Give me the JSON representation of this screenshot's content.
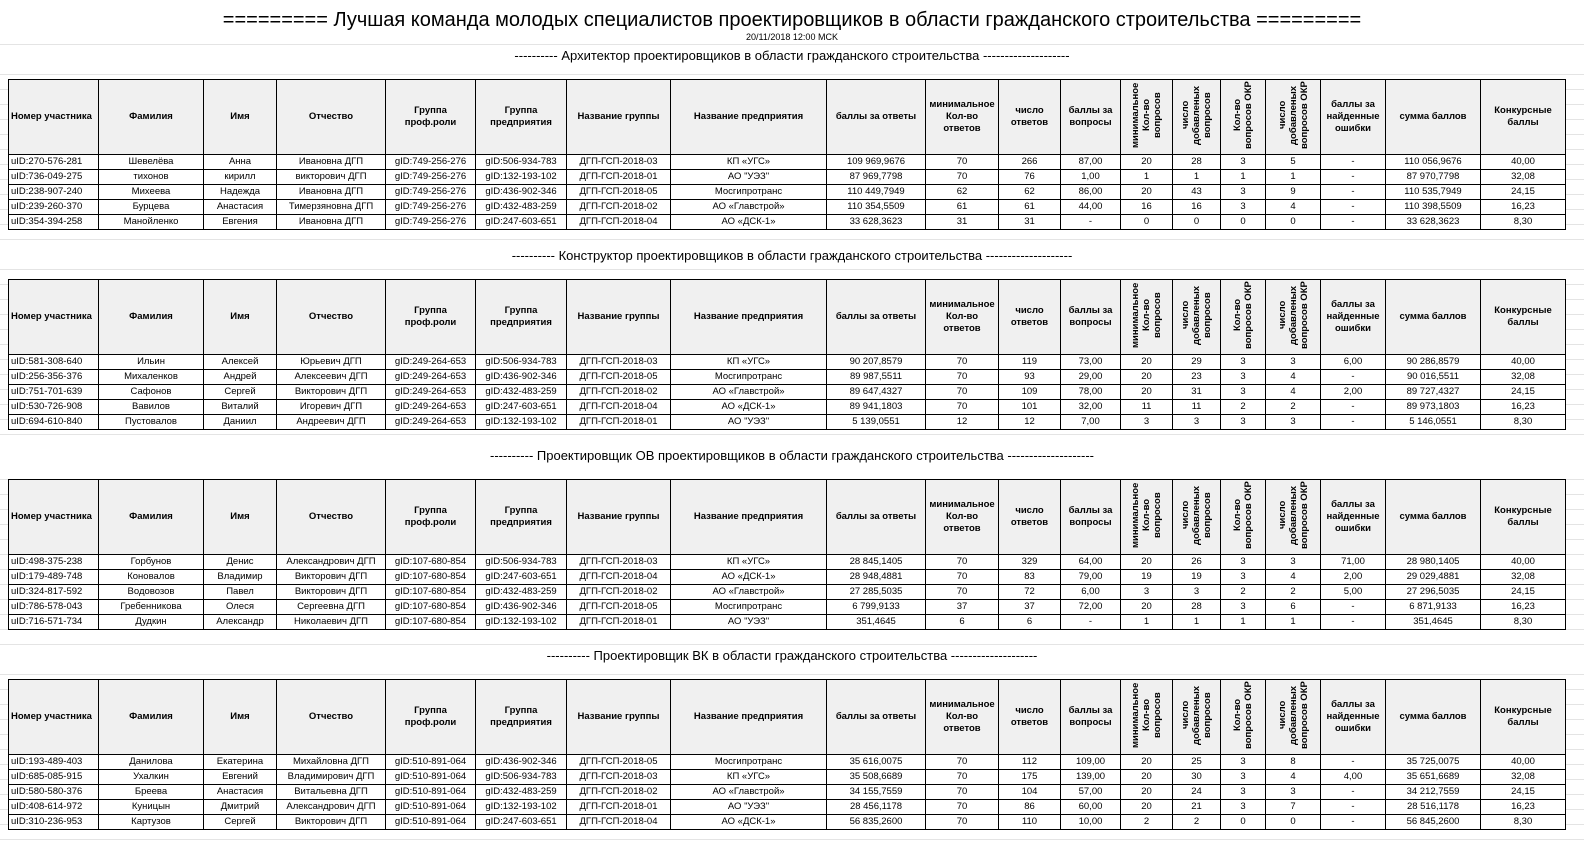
{
  "title": "========= Лучшая команда молодых специалистов проектировщиков в области гражданского строительства =========",
  "date": "20/11/2018 12:00 MCK",
  "columns": [
    "Номер участника",
    "Фамилия",
    "Имя",
    "Отчество",
    "Группа проф.роли",
    "Группа предприятия",
    "Название группы",
    "Название предприятия",
    "баллы за ответы",
    "минимальное Кол-во ответов",
    "число ответов",
    "баллы за вопросы",
    "минимальное Кол-во вопросов",
    "число добавленых вопросов",
    "Кол-во вопросов ОКР",
    "число добавленых вопросов ОКР",
    "баллы за найденные ошибки",
    "сумма баллов",
    "Конкурсные баллы"
  ],
  "sections": [
    {
      "title": "---------- Архитектор проектировщиков в области гражданского строительства --------------------",
      "rows": [
        [
          "uID:270-576-281",
          "Шевелёва",
          "Анна",
          "Ивановна ДГП",
          "gID:749-256-276",
          "gID:506-934-783",
          "ДГП-ГСП-2018-03",
          "КП «УГС»",
          "109 969,9676",
          "70",
          "266",
          "87,00",
          "20",
          "28",
          "3",
          "5",
          "-",
          "110 056,9676",
          "40,00"
        ],
        [
          "uID:736-049-275",
          "тихонов",
          "кирилл",
          "викторович ДГП",
          "gID:749-256-276",
          "gID:132-193-102",
          "ДГП-ГСП-2018-01",
          "АО \"УЭЗ\"",
          "87 969,7798",
          "70",
          "76",
          "1,00",
          "1",
          "1",
          "1",
          "1",
          "-",
          "87 970,7798",
          "32,08"
        ],
        [
          "uID:238-907-240",
          "Михеева",
          "Надежда",
          "Ивановна ДГП",
          "gID:749-256-276",
          "gID:436-902-346",
          "ДГП-ГСП-2018-05",
          "Мосгипротранс",
          "110 449,7949",
          "62",
          "62",
          "86,00",
          "20",
          "43",
          "3",
          "9",
          "-",
          "110 535,7949",
          "24,15"
        ],
        [
          "uID:239-260-370",
          "Бурцева",
          "Анастасия",
          "Тимерзяновна ДГП",
          "gID:749-256-276",
          "gID:432-483-259",
          "ДГП-ГСП-2018-02",
          "АО «Главстрой»",
          "110 354,5509",
          "61",
          "61",
          "44,00",
          "16",
          "16",
          "3",
          "4",
          "-",
          "110 398,5509",
          "16,23"
        ],
        [
          "uID:354-394-258",
          "Манойленко",
          "Евгения",
          "Ивановна ДГП",
          "gID:749-256-276",
          "gID:247-603-651",
          "ДГП-ГСП-2018-04",
          "АО «ДСК-1»",
          "33 628,3623",
          "31",
          "31",
          "-",
          "0",
          "0",
          "0",
          "0",
          "-",
          "33 628,3623",
          "8,30"
        ]
      ]
    },
    {
      "title": "---------- Конструктор проектировщиков в области гражданского строительства --------------------",
      "rows": [
        [
          "uID:581-308-640",
          "Ильин",
          "Алексей",
          "Юрьевич ДГП",
          "gID:249-264-653",
          "gID:506-934-783",
          "ДГП-ГСП-2018-03",
          "КП «УГС»",
          "90 207,8579",
          "70",
          "119",
          "73,00",
          "20",
          "29",
          "3",
          "3",
          "6,00",
          "90 286,8579",
          "40,00"
        ],
        [
          "uID:256-356-376",
          "Михаленков",
          "Андрей",
          "Алексеевич ДГП",
          "gID:249-264-653",
          "gID:436-902-346",
          "ДГП-ГСП-2018-05",
          "Мосгипротранс",
          "89 987,5511",
          "70",
          "93",
          "29,00",
          "20",
          "23",
          "3",
          "4",
          "-",
          "90 016,5511",
          "32,08"
        ],
        [
          "uID:751-701-639",
          "Сафонов",
          "Сергей",
          "Викторович ДГП",
          "gID:249-264-653",
          "gID:432-483-259",
          "ДГП-ГСП-2018-02",
          "АО «Главстрой»",
          "89 647,4327",
          "70",
          "109",
          "78,00",
          "20",
          "31",
          "3",
          "4",
          "2,00",
          "89 727,4327",
          "24,15"
        ],
        [
          "uID:530-726-908",
          "Вавилов",
          "Виталий",
          "Игоревич ДГП",
          "gID:249-264-653",
          "gID:247-603-651",
          "ДГП-ГСП-2018-04",
          "АО «ДСК-1»",
          "89 941,1803",
          "70",
          "101",
          "32,00",
          "11",
          "11",
          "2",
          "2",
          "-",
          "89 973,1803",
          "16,23"
        ],
        [
          "uID:694-610-840",
          "Пустовалов",
          "Даниил",
          "Андреевич ДГП",
          "gID:249-264-653",
          "gID:132-193-102",
          "ДГП-ГСП-2018-01",
          "АО \"УЭЗ\"",
          "5 139,0551",
          "12",
          "12",
          "7,00",
          "3",
          "3",
          "3",
          "3",
          "-",
          "5 146,0551",
          "8,30"
        ]
      ]
    },
    {
      "title": "---------- Проектировщик ОВ проектировщиков в области гражданского строительства --------------------",
      "rows": [
        [
          "uID:498-375-238",
          "Горбунов",
          "Денис",
          "Александрович ДГП",
          "gID:107-680-854",
          "gID:506-934-783",
          "ДГП-ГСП-2018-03",
          "КП «УГС»",
          "28 845,1405",
          "70",
          "329",
          "64,00",
          "20",
          "26",
          "3",
          "3",
          "71,00",
          "28 980,1405",
          "40,00"
        ],
        [
          "uID:179-489-748",
          "Коновалов",
          "Владимир",
          "Викторович ДГП",
          "gID:107-680-854",
          "gID:247-603-651",
          "ДГП-ГСП-2018-04",
          "АО «ДСК-1»",
          "28 948,4881",
          "70",
          "83",
          "79,00",
          "19",
          "19",
          "3",
          "4",
          "2,00",
          "29 029,4881",
          "32,08"
        ],
        [
          "uID:324-817-592",
          "Водовозов",
          "Павел",
          "Викторович ДГП",
          "gID:107-680-854",
          "gID:432-483-259",
          "ДГП-ГСП-2018-02",
          "АО «Главстрой»",
          "27 285,5035",
          "70",
          "72",
          "6,00",
          "3",
          "3",
          "2",
          "2",
          "5,00",
          "27 296,5035",
          "24,15"
        ],
        [
          "uID:786-578-043",
          "Гребенникова",
          "Олеся",
          "Сергеевна ДГП",
          "gID:107-680-854",
          "gID:436-902-346",
          "ДГП-ГСП-2018-05",
          "Мосгипротранс",
          "6 799,9133",
          "37",
          "37",
          "72,00",
          "20",
          "28",
          "3",
          "6",
          "-",
          "6 871,9133",
          "16,23"
        ],
        [
          "uID:716-571-734",
          "Дудкин",
          "Александр",
          "Николаевич ДГП",
          "gID:107-680-854",
          "gID:132-193-102",
          "ДГП-ГСП-2018-01",
          "АО \"УЭЗ\"",
          "351,4645",
          "6",
          "6",
          "-",
          "1",
          "1",
          "1",
          "1",
          "-",
          "351,4645",
          "8,30"
        ]
      ]
    },
    {
      "title": "---------- Проектировщик ВК в области гражданского строительства --------------------",
      "rows": [
        [
          "uID:193-489-403",
          "Данилова",
          "Екатерина",
          "Михайловна ДГП",
          "gID:510-891-064",
          "gID:436-902-346",
          "ДГП-ГСП-2018-05",
          "Мосгипротранс",
          "35 616,0075",
          "70",
          "112",
          "109,00",
          "20",
          "25",
          "3",
          "8",
          "-",
          "35 725,0075",
          "40,00"
        ],
        [
          "uID:685-085-915",
          "Ухалкин",
          "Евгений",
          "Владимирович ДГП",
          "gID:510-891-064",
          "gID:506-934-783",
          "ДГП-ГСП-2018-03",
          "КП «УГС»",
          "35 508,6689",
          "70",
          "175",
          "139,00",
          "20",
          "30",
          "3",
          "4",
          "4,00",
          "35 651,6689",
          "32,08"
        ],
        [
          "uID:580-580-376",
          "Бреева",
          "Анастасия",
          "Витальевна ДГП",
          "gID:510-891-064",
          "gID:432-483-259",
          "ДГП-ГСП-2018-02",
          "АО «Главстрой»",
          "34 155,7559",
          "70",
          "104",
          "57,00",
          "20",
          "24",
          "3",
          "3",
          "-",
          "34 212,7559",
          "24,15"
        ],
        [
          "uID:408-614-972",
          "Куницын",
          "Дмитрий",
          "Александрович ДГП",
          "gID:510-891-064",
          "gID:132-193-102",
          "ДГП-ГСП-2018-01",
          "АО \"УЭЗ\"",
          "28 456,1178",
          "70",
          "86",
          "60,00",
          "20",
          "21",
          "3",
          "7",
          "-",
          "28 516,1178",
          "16,23"
        ],
        [
          "uID:310-236-953",
          "Картузов",
          "Сергей",
          "Викторович ДГП",
          "gID:510-891-064",
          "gID:247-603-651",
          "ДГП-ГСП-2018-04",
          "АО «ДСК-1»",
          "56 835,2600",
          "70",
          "110",
          "10,00",
          "2",
          "2",
          "0",
          "0",
          "-",
          "56 845,2600",
          "8,30"
        ]
      ]
    }
  ]
}
